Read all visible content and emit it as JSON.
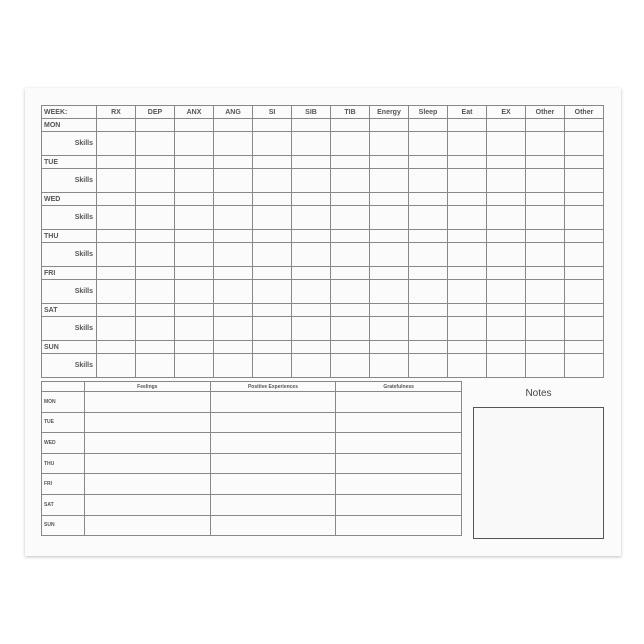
{
  "tracker": {
    "week_label": "WEEK:",
    "columns": [
      "RX",
      "DEP",
      "ANX",
      "ANG",
      "SI",
      "SIB",
      "TIB",
      "Energy",
      "Sleep",
      "Eat",
      "EX",
      "Other",
      "Other"
    ],
    "days": [
      "MON",
      "TUE",
      "WED",
      "THU",
      "FRI",
      "SAT",
      "SUN"
    ],
    "skills_label": "Skills"
  },
  "journal": {
    "columns": [
      "Feelings",
      "Positive Experiences",
      "Gratefulness"
    ],
    "days": [
      "MON",
      "TUE",
      "WED",
      "THU",
      "FRI",
      "SAT",
      "SUN"
    ]
  },
  "notes": {
    "title": "Notes"
  }
}
